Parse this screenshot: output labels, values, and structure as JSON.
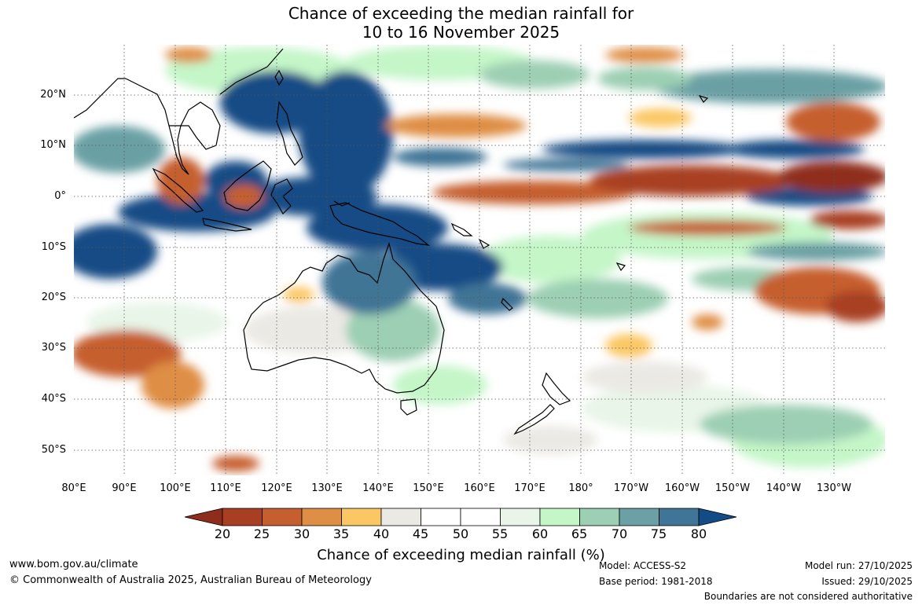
{
  "title": {
    "line1": "Chance of exceeding the median rainfall for",
    "line2": "10 to 16 November 2025"
  },
  "map": {
    "lon_labels": [
      "80°E",
      "90°E",
      "100°E",
      "110°E",
      "120°E",
      "130°E",
      "140°E",
      "150°E",
      "160°E",
      "170°E",
      "180°",
      "170°W",
      "160°W",
      "150°W",
      "140°W",
      "130°W"
    ],
    "lat_labels": [
      "20°N",
      "10°N",
      "0°",
      "10°S",
      "20°S",
      "30°S",
      "40°S",
      "50°S"
    ],
    "lon_range": [
      80,
      240
    ],
    "lat_range": [
      -55,
      30
    ],
    "grid": "dotted"
  },
  "colorbar": {
    "ticks": [
      "20",
      "25",
      "30",
      "35",
      "40",
      "45",
      "50",
      "55",
      "60",
      "65",
      "70",
      "75",
      "80"
    ],
    "colors": [
      "#a93f22",
      "#c65f2f",
      "#df8e45",
      "#fbc765",
      "#ebe9e4",
      "#ffffff",
      "#ffffff",
      "#e8f5e8",
      "#c4f6c8",
      "#9ccfb3",
      "#6ba0a4",
      "#3f7596"
    ],
    "under_color": "#8f2d1c",
    "over_color": "#124b85",
    "label": "Chance of exceeding median rainfall (%)"
  },
  "footer": {
    "url": "www.bom.gov.au/climate",
    "copyright": "© Commonwealth of Australia 2025, Australian Bureau of Meteorology",
    "model": "Model: ACCESS-S2",
    "base_period": "Base period: 1981-2018",
    "model_run": "Model run: 27/10/2025",
    "issued": "Issued: 29/10/2025",
    "disclaimer": "Boundaries are not considered authoritative"
  }
}
